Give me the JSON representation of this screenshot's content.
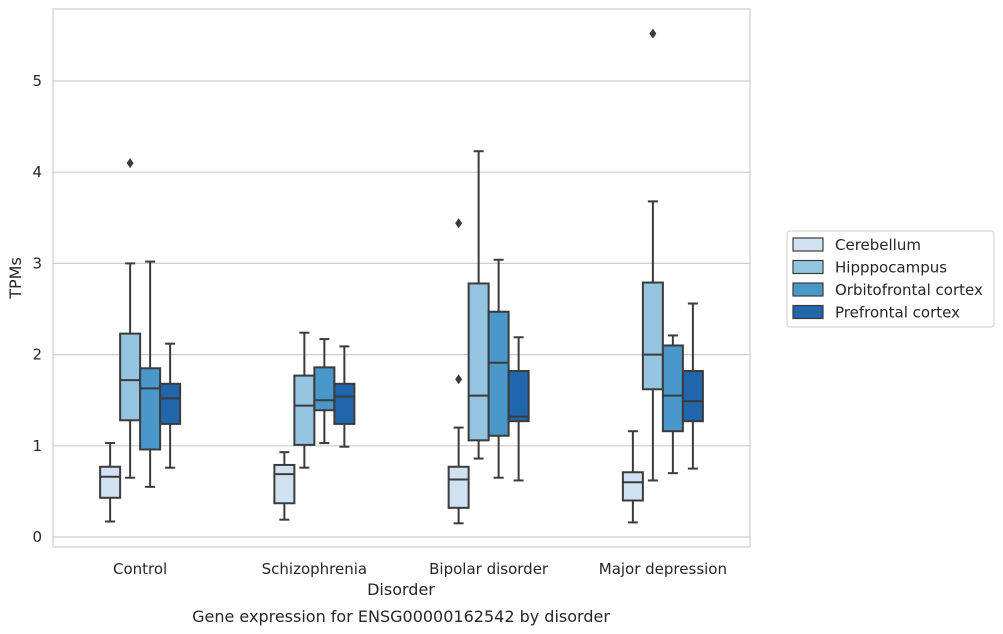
{
  "chart_data": {
    "type": "box",
    "xlabel": "Disorder",
    "ylabel": "TPMs",
    "caption": "Gene expression for ENSG00000162542 by disorder",
    "ylim": [
      -0.12,
      5.8
    ],
    "yticks": [
      0,
      1,
      2,
      3,
      4,
      5
    ],
    "grid": true,
    "legend_position": "right",
    "categories": [
      "Control",
      "Schizophrenia",
      "Bipolar disorder",
      "Major depression"
    ],
    "series": [
      {
        "name": "Cerebellum",
        "color": "#d0e1f2",
        "boxes": [
          {
            "whisker_low": 0.17,
            "q1": 0.43,
            "median": 0.66,
            "q3": 0.77,
            "whisker_high": 1.03,
            "outliers": []
          },
          {
            "whisker_low": 0.19,
            "q1": 0.37,
            "median": 0.69,
            "q3": 0.79,
            "whisker_high": 0.93,
            "outliers": []
          },
          {
            "whisker_low": 0.15,
            "q1": 0.32,
            "median": 0.63,
            "q3": 0.77,
            "whisker_high": 1.2,
            "outliers": [
              1.73,
              3.44
            ]
          },
          {
            "whisker_low": 0.16,
            "q1": 0.4,
            "median": 0.6,
            "q3": 0.71,
            "whisker_high": 1.16,
            "outliers": []
          }
        ]
      },
      {
        "name": "Hipppocampus",
        "color": "#94c4df",
        "boxes": [
          {
            "whisker_low": 0.65,
            "q1": 1.28,
            "median": 1.72,
            "q3": 2.23,
            "whisker_high": 3.0,
            "outliers": [
              4.1
            ]
          },
          {
            "whisker_low": 0.76,
            "q1": 1.01,
            "median": 1.44,
            "q3": 1.77,
            "whisker_high": 2.24,
            "outliers": []
          },
          {
            "whisker_low": 0.86,
            "q1": 1.06,
            "median": 1.55,
            "q3": 2.78,
            "whisker_high": 4.23,
            "outliers": []
          },
          {
            "whisker_low": 0.62,
            "q1": 1.62,
            "median": 2.0,
            "q3": 2.79,
            "whisker_high": 3.68,
            "outliers": [
              5.52
            ]
          }
        ]
      },
      {
        "name": "Orbitofrontal cortex",
        "color": "#4a98c9",
        "boxes": [
          {
            "whisker_low": 0.55,
            "q1": 0.96,
            "median": 1.63,
            "q3": 1.85,
            "whisker_high": 3.02,
            "outliers": []
          },
          {
            "whisker_low": 1.03,
            "q1": 1.39,
            "median": 1.5,
            "q3": 1.86,
            "whisker_high": 2.17,
            "outliers": []
          },
          {
            "whisker_low": 0.65,
            "q1": 1.11,
            "median": 1.91,
            "q3": 2.47,
            "whisker_high": 3.04,
            "outliers": []
          },
          {
            "whisker_low": 0.7,
            "q1": 1.16,
            "median": 1.55,
            "q3": 2.1,
            "whisker_high": 2.21,
            "outliers": []
          }
        ]
      },
      {
        "name": "Prefrontal cortex",
        "color": "#2166ac",
        "boxes": [
          {
            "whisker_low": 0.76,
            "q1": 1.24,
            "median": 1.52,
            "q3": 1.68,
            "whisker_high": 2.12,
            "outliers": []
          },
          {
            "whisker_low": 0.99,
            "q1": 1.24,
            "median": 1.54,
            "q3": 1.68,
            "whisker_high": 2.09,
            "outliers": []
          },
          {
            "whisker_low": 0.62,
            "q1": 1.27,
            "median": 1.32,
            "q3": 1.82,
            "whisker_high": 2.19,
            "outliers": []
          },
          {
            "whisker_low": 0.75,
            "q1": 1.27,
            "median": 1.49,
            "q3": 1.82,
            "whisker_high": 2.56,
            "outliers": []
          }
        ]
      }
    ]
  }
}
